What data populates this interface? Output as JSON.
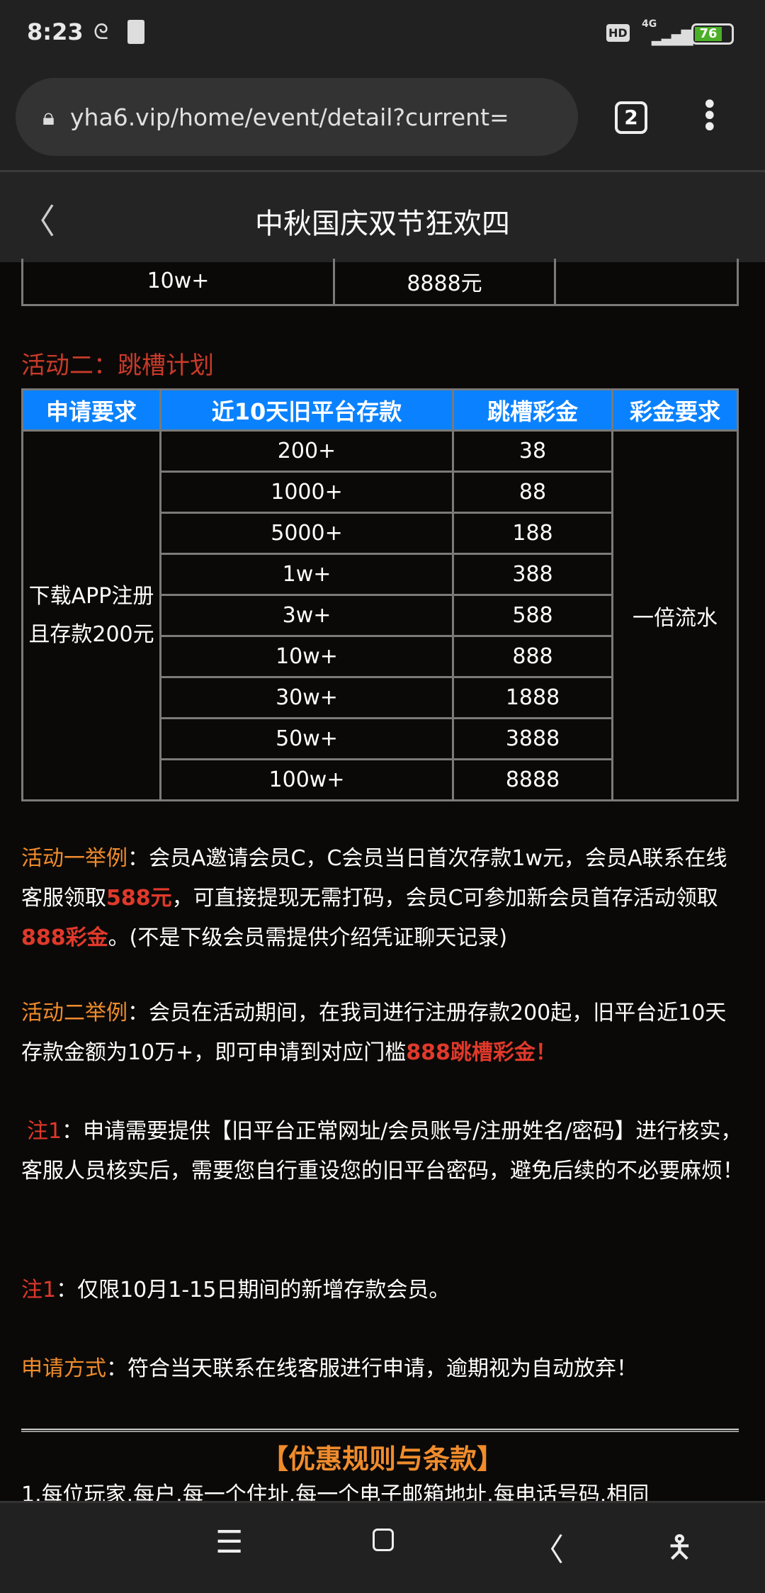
{
  "status_bar": {
    "time": "8:23",
    "hd": "HD",
    "network": "4G",
    "battery": "76"
  },
  "browser": {
    "url": "yha6.vip/home/event/detail?current=",
    "tab_count": "2"
  },
  "header": {
    "title": "中秋国庆双节狂欢四"
  },
  "prev_table_row": [
    "10w+",
    "8888元",
    ""
  ],
  "activity2": {
    "title": "活动二：跳槽计划",
    "headers": [
      "申请要求",
      "近10天旧平台存款",
      "跳槽彩金",
      "彩金要求"
    ],
    "requirement": "下载APP注册且存款200元",
    "bonus_requirement": "一倍流水",
    "rows": [
      [
        "200+",
        "38"
      ],
      [
        "1000+",
        "88"
      ],
      [
        "5000+",
        "188"
      ],
      [
        "1w+",
        "388"
      ],
      [
        "3w+",
        "588"
      ],
      [
        "10w+",
        "888"
      ],
      [
        "30w+",
        "1888"
      ],
      [
        "50w+",
        "3888"
      ],
      [
        "100w+",
        "8888"
      ]
    ]
  },
  "example1": {
    "label": "活动一举例",
    "t1": "：会员A邀请会员C，C会员当日首次存款1w元，会员A联系在线客服领取",
    "h1": "588元",
    "t2": "，可直接提现无需打码，会员C可参加新会员首存活动领取",
    "h2": "888彩金",
    "t3": "。(不是下级会员需提供介绍凭证聊天记录)"
  },
  "example2": {
    "label": "活动二举例",
    "t1": "：会员在活动期间，在我司进行注册存款200起，旧平台近10天存款金额为10万+，即可申请到对应门槛",
    "h1": "888跳槽彩金！"
  },
  "note1": {
    "label": "注1",
    "text": "：申请需要提供【旧平台正常网址/会员账号/注册姓名/密码】进行核实，客服人员核实后，需要您自行重设您的旧平台密码，避免后续的不必要麻烦！"
  },
  "note2": {
    "label": "注1",
    "text": "：仅限10月1-15日期间的新增存款会员。"
  },
  "apply": {
    "label": "申请方式",
    "text": "：符合当天联系在线客服进行申请，逾期视为自动放弃！"
  },
  "rules": {
    "title": "【优惠规则与条款】",
    "line1": "1.每位玩家.每户.每一个住址.每一个电子邮箱地址.每电话号码.相同"
  },
  "colors": {
    "table_header": "#0a82ff",
    "highlight_red": "#e0392b",
    "label_orange": "#f08c2c"
  }
}
